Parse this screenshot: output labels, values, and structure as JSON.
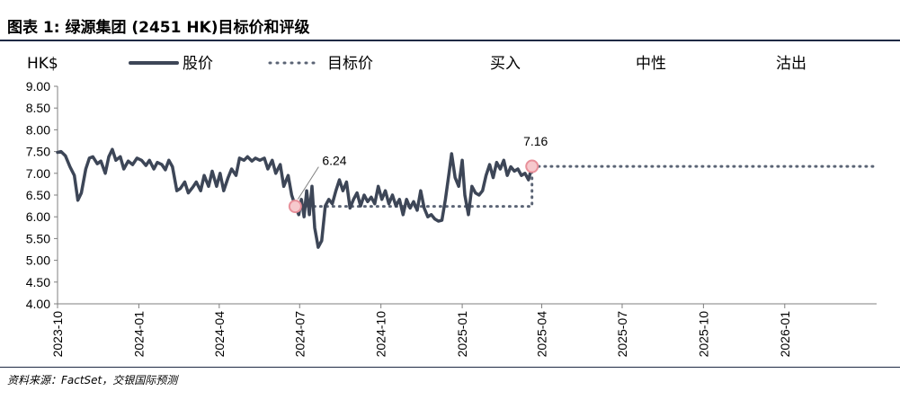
{
  "header": {
    "title": "图表 1: 绿源集团 (2451 HK)目标价和评级",
    "source": "资料来源：FactSet，交银国际预测"
  },
  "chart_data": {
    "type": "line",
    "unit": "HK$",
    "ylim": [
      4.0,
      9.0
    ],
    "yticks": [
      "9.00",
      "8.50",
      "8.00",
      "7.50",
      "7.00",
      "6.50",
      "6.00",
      "5.50",
      "5.00",
      "4.50",
      "4.00"
    ],
    "xlim": [
      "2023-10-01",
      "2026-04-15"
    ],
    "xticks": [
      "2023-10",
      "2024-01",
      "2024-04",
      "2024-07",
      "2024-10",
      "2025-01",
      "2025-04",
      "2025-07",
      "2025-10",
      "2026-01"
    ],
    "grid": false,
    "legend": {
      "placement": "top",
      "entries": [
        {
          "label": "股价",
          "style": "solid"
        },
        {
          "label": "目标价",
          "style": "dotted"
        },
        {
          "label": "买入",
          "style": "none"
        },
        {
          "label": "中性",
          "style": "none"
        },
        {
          "label": "沽出",
          "style": "none"
        }
      ]
    },
    "series": [
      {
        "name": "股价",
        "color": "#3d4657",
        "points": [
          [
            "2023-10-01",
            7.48
          ],
          [
            "2023-10-05",
            7.5
          ],
          [
            "2023-10-10",
            7.4
          ],
          [
            "2023-10-15",
            7.15
          ],
          [
            "2023-10-20",
            6.95
          ],
          [
            "2023-10-24",
            6.38
          ],
          [
            "2023-10-28",
            6.55
          ],
          [
            "2023-11-02",
            7.1
          ],
          [
            "2023-11-06",
            7.35
          ],
          [
            "2023-11-10",
            7.38
          ],
          [
            "2023-11-15",
            7.22
          ],
          [
            "2023-11-19",
            7.28
          ],
          [
            "2023-11-24",
            7.0
          ],
          [
            "2023-11-28",
            7.38
          ],
          [
            "2023-12-02",
            7.55
          ],
          [
            "2023-12-06",
            7.3
          ],
          [
            "2023-12-11",
            7.38
          ],
          [
            "2023-12-15",
            7.1
          ],
          [
            "2023-12-20",
            7.28
          ],
          [
            "2023-12-25",
            7.2
          ],
          [
            "2023-12-30",
            7.35
          ],
          [
            "2024-01-04",
            7.3
          ],
          [
            "2024-01-09",
            7.18
          ],
          [
            "2024-01-13",
            7.3
          ],
          [
            "2024-01-18",
            7.1
          ],
          [
            "2024-01-22",
            7.25
          ],
          [
            "2024-01-27",
            7.2
          ],
          [
            "2024-01-31",
            7.08
          ],
          [
            "2024-02-04",
            7.3
          ],
          [
            "2024-02-08",
            7.15
          ],
          [
            "2024-02-13",
            6.6
          ],
          [
            "2024-02-17",
            6.65
          ],
          [
            "2024-02-22",
            6.8
          ],
          [
            "2024-02-26",
            6.55
          ],
          [
            "2024-03-02",
            6.68
          ],
          [
            "2024-03-06",
            6.8
          ],
          [
            "2024-03-11",
            6.6
          ],
          [
            "2024-03-15",
            6.95
          ],
          [
            "2024-03-20",
            6.7
          ],
          [
            "2024-03-24",
            7.05
          ],
          [
            "2024-03-29",
            6.7
          ],
          [
            "2024-04-02",
            7.0
          ],
          [
            "2024-04-06",
            6.6
          ],
          [
            "2024-04-11",
            6.9
          ],
          [
            "2024-04-15",
            7.1
          ],
          [
            "2024-04-20",
            6.95
          ],
          [
            "2024-04-24",
            7.35
          ],
          [
            "2024-04-29",
            7.3
          ],
          [
            "2024-05-03",
            7.38
          ],
          [
            "2024-05-08",
            7.28
          ],
          [
            "2024-05-12",
            7.35
          ],
          [
            "2024-05-17",
            7.3
          ],
          [
            "2024-05-22",
            7.35
          ],
          [
            "2024-05-26",
            7.1
          ],
          [
            "2024-05-31",
            7.3
          ],
          [
            "2024-06-04",
            7.0
          ],
          [
            "2024-06-09",
            7.2
          ],
          [
            "2024-06-13",
            6.7
          ],
          [
            "2024-06-18",
            6.95
          ],
          [
            "2024-06-22",
            6.5
          ],
          [
            "2024-06-26",
            6.25
          ],
          [
            "2024-06-30",
            6.05
          ],
          [
            "2024-07-03",
            6.4
          ],
          [
            "2024-07-06",
            6.0
          ],
          [
            "2024-07-09",
            6.6
          ],
          [
            "2024-07-12",
            6.05
          ],
          [
            "2024-07-15",
            6.7
          ],
          [
            "2024-07-18",
            5.75
          ],
          [
            "2024-07-22",
            5.3
          ],
          [
            "2024-07-26",
            5.45
          ],
          [
            "2024-07-30",
            6.25
          ],
          [
            "2024-08-03",
            6.4
          ],
          [
            "2024-08-07",
            6.3
          ],
          [
            "2024-08-11",
            6.6
          ],
          [
            "2024-08-15",
            6.85
          ],
          [
            "2024-08-19",
            6.6
          ],
          [
            "2024-08-23",
            6.8
          ],
          [
            "2024-08-27",
            6.2
          ],
          [
            "2024-08-31",
            6.4
          ],
          [
            "2024-09-04",
            6.55
          ],
          [
            "2024-09-08",
            6.25
          ],
          [
            "2024-09-12",
            6.5
          ],
          [
            "2024-09-16",
            6.35
          ],
          [
            "2024-09-20",
            6.45
          ],
          [
            "2024-09-24",
            6.3
          ],
          [
            "2024-09-28",
            6.7
          ],
          [
            "2024-10-02",
            6.4
          ],
          [
            "2024-10-06",
            6.6
          ],
          [
            "2024-10-10",
            6.3
          ],
          [
            "2024-10-14",
            6.5
          ],
          [
            "2024-10-18",
            6.25
          ],
          [
            "2024-10-22",
            6.4
          ],
          [
            "2024-10-26",
            6.05
          ],
          [
            "2024-10-30",
            6.4
          ],
          [
            "2024-11-03",
            6.2
          ],
          [
            "2024-11-07",
            6.35
          ],
          [
            "2024-11-11",
            6.15
          ],
          [
            "2024-11-15",
            6.6
          ],
          [
            "2024-11-19",
            6.2
          ],
          [
            "2024-11-23",
            6.0
          ],
          [
            "2024-11-27",
            6.05
          ],
          [
            "2024-12-01",
            5.95
          ],
          [
            "2024-12-05",
            5.9
          ],
          [
            "2024-12-09",
            5.92
          ],
          [
            "2024-12-13",
            6.4
          ],
          [
            "2024-12-17",
            7.0
          ],
          [
            "2024-12-20",
            7.45
          ],
          [
            "2024-12-24",
            6.9
          ],
          [
            "2024-12-28",
            6.7
          ],
          [
            "2025-01-01",
            7.3
          ],
          [
            "2025-01-04",
            6.5
          ],
          [
            "2025-01-08",
            6.05
          ],
          [
            "2025-01-12",
            6.7
          ],
          [
            "2025-01-16",
            6.55
          ],
          [
            "2025-01-20",
            6.5
          ],
          [
            "2025-01-24",
            6.6
          ],
          [
            "2025-01-28",
            6.95
          ],
          [
            "2025-02-01",
            7.2
          ],
          [
            "2025-02-05",
            6.9
          ],
          [
            "2025-02-09",
            7.25
          ],
          [
            "2025-02-13",
            7.1
          ],
          [
            "2025-02-17",
            7.3
          ],
          [
            "2025-02-21",
            6.95
          ],
          [
            "2025-02-25",
            7.15
          ],
          [
            "2025-03-01",
            7.05
          ],
          [
            "2025-03-05",
            7.1
          ],
          [
            "2025-03-09",
            6.95
          ],
          [
            "2025-03-13",
            7.0
          ],
          [
            "2025-03-17",
            6.85
          ],
          [
            "2025-03-21",
            7.16
          ]
        ]
      },
      {
        "name": "目标价",
        "color": "#5b6475",
        "style": "dotted",
        "points": [
          [
            "2024-06-26",
            6.24
          ],
          [
            "2025-03-21",
            6.24
          ],
          [
            "2025-03-21",
            7.16
          ],
          [
            "2026-04-15",
            7.16
          ]
        ]
      }
    ],
    "annotations": [
      {
        "label": "6.24",
        "x": "2024-06-26",
        "y": 6.24,
        "marker": "circle"
      },
      {
        "label": "7.16",
        "x": "2025-03-21",
        "y": 7.16,
        "marker": "circle"
      }
    ]
  }
}
